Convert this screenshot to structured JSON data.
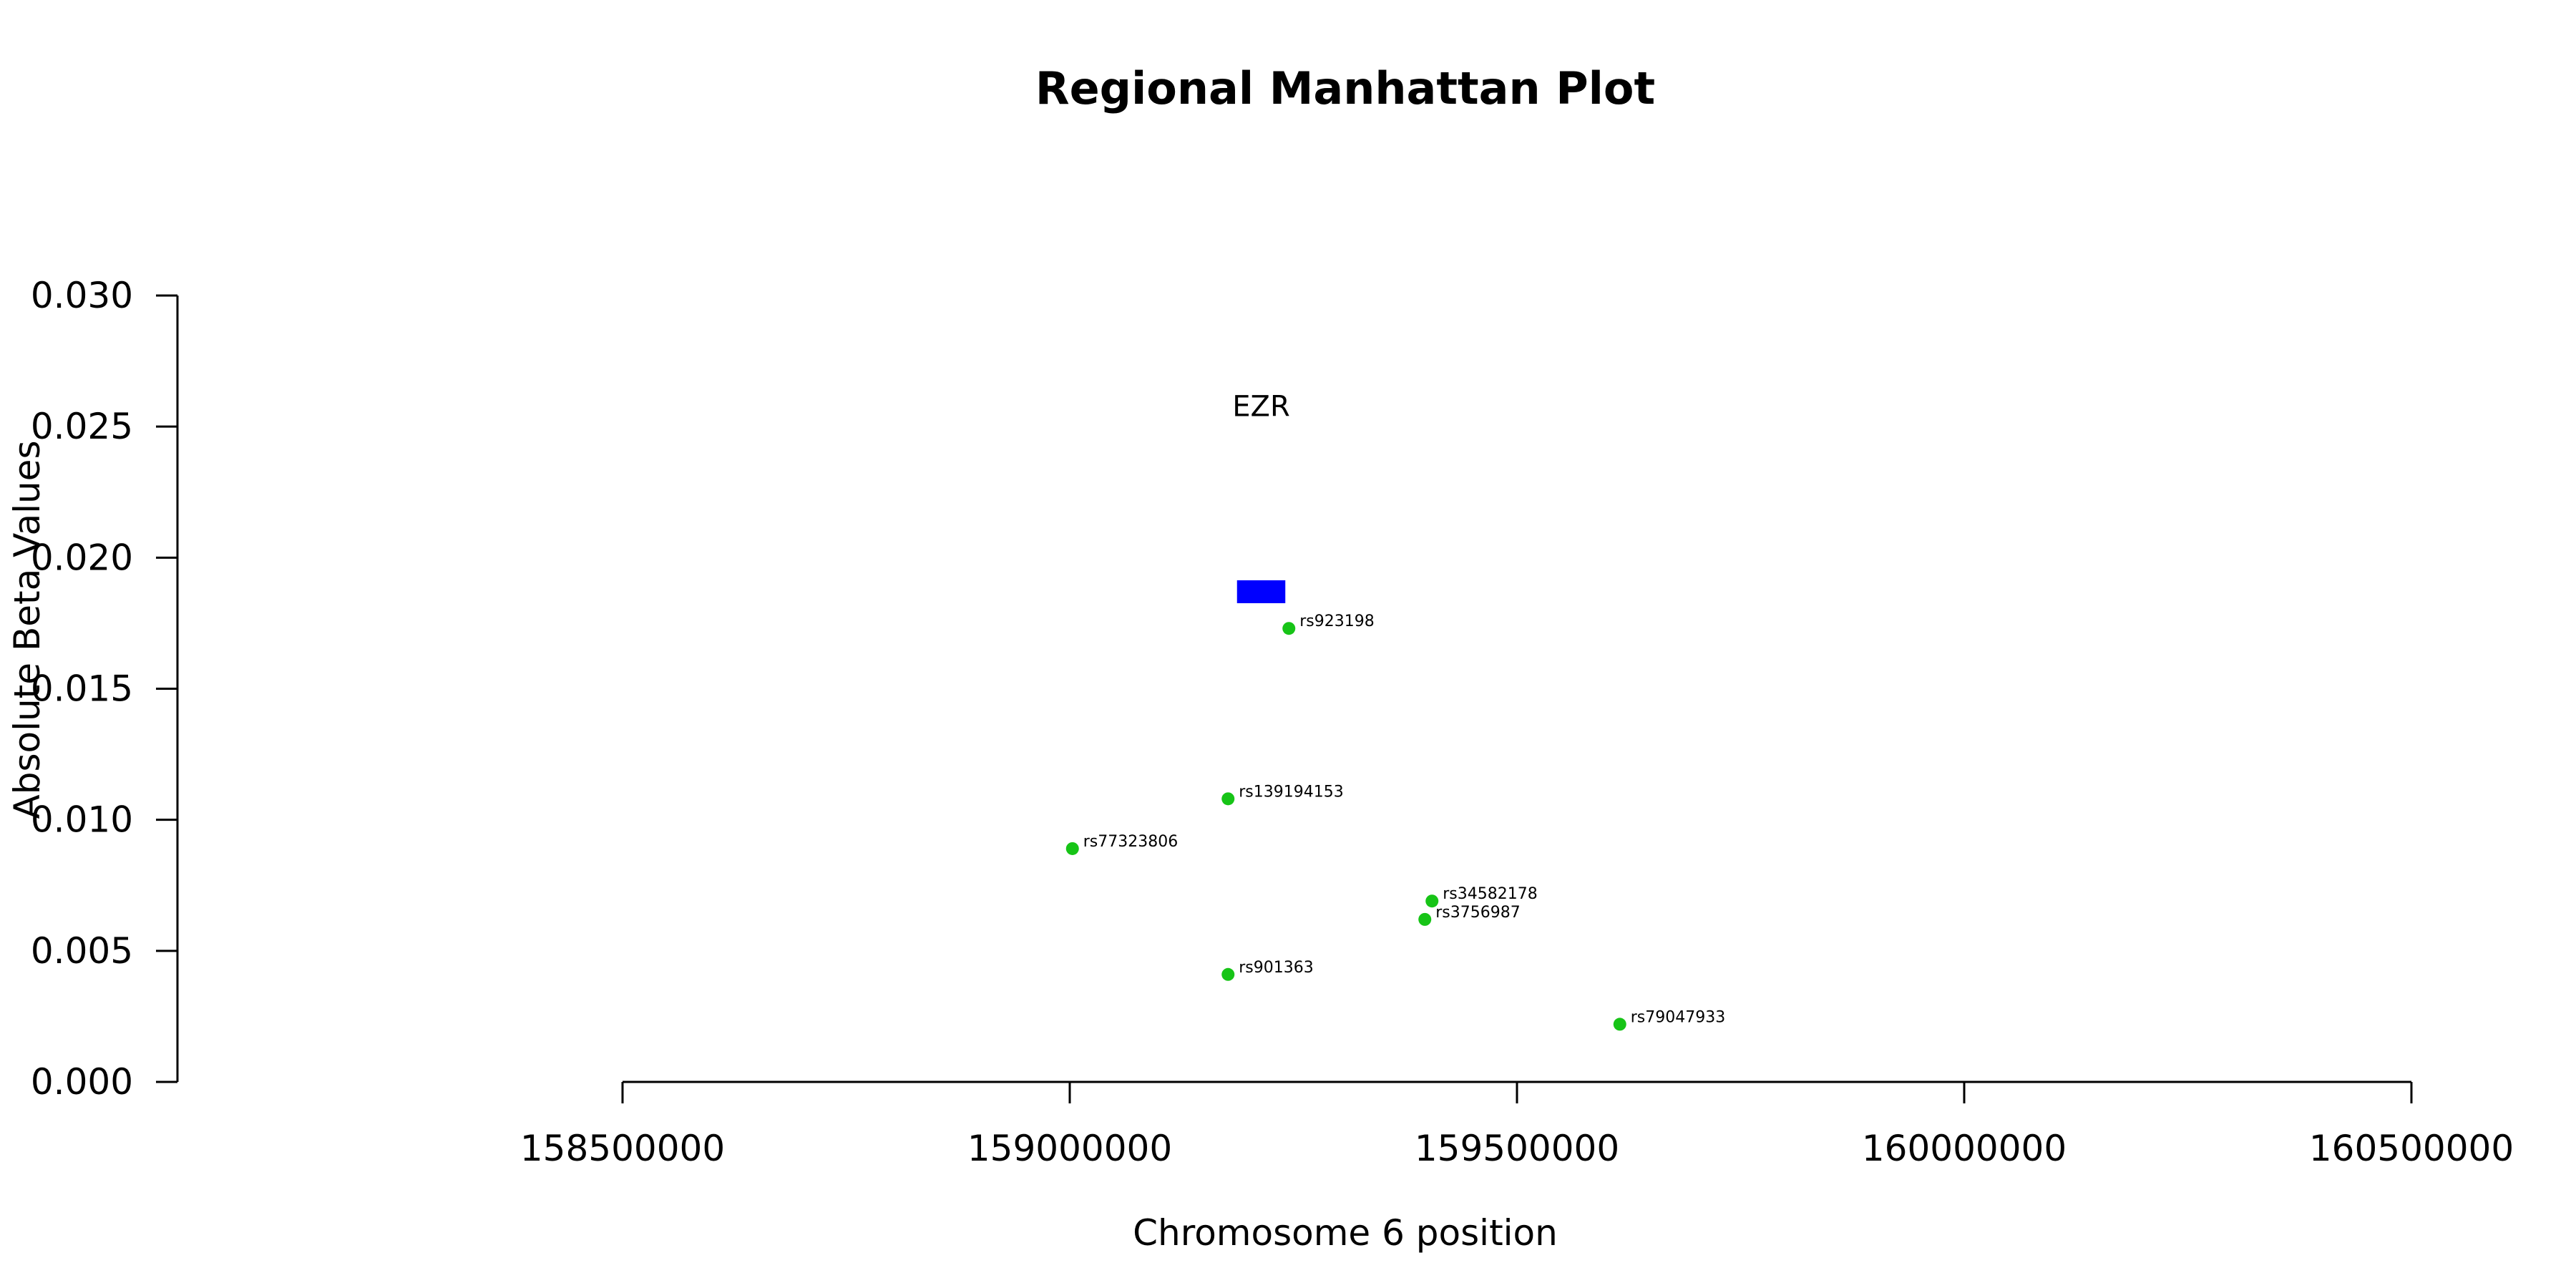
{
  "chart_data": {
    "type": "scatter",
    "title": "Regional Manhattan Plot",
    "xlabel": "Chromosome 6 position",
    "ylabel": "Absolute Beta Values",
    "xlim": [
      158500000,
      160500000
    ],
    "ylim": [
      0.0,
      0.03
    ],
    "x_ticks": [
      158500000,
      159000000,
      159500000,
      160000000,
      160500000
    ],
    "x_tick_labels": [
      "158500000",
      "159000000",
      "159500000",
      "160000000",
      "160500000"
    ],
    "y_ticks": [
      0.0,
      0.005,
      0.01,
      0.015,
      0.02,
      0.025,
      0.03
    ],
    "y_tick_labels": [
      "0.000",
      "0.005",
      "0.010",
      "0.015",
      "0.020",
      "0.025",
      "0.030"
    ],
    "grid": false,
    "point_color": "#17c417",
    "points": [
      {
        "label": "rs923198",
        "x": 159245000,
        "y": 0.0173
      },
      {
        "label": "rs139194153",
        "x": 159177000,
        "y": 0.0108
      },
      {
        "label": "rs77323806",
        "x": 159003000,
        "y": 0.0089
      },
      {
        "label": "rs34582178",
        "x": 159405000,
        "y": 0.0069
      },
      {
        "label": "rs3756987",
        "x": 159397000,
        "y": 0.0062
      },
      {
        "label": "rs901363",
        "x": 159177000,
        "y": 0.0041
      },
      {
        "label": "rs79047933",
        "x": 159615000,
        "y": 0.0022
      }
    ],
    "genes": [
      {
        "name": "EZR",
        "start": 159187000,
        "end": 159241000,
        "y": 0.0187,
        "label_y": 0.0254,
        "color": "#0000ff"
      }
    ]
  }
}
